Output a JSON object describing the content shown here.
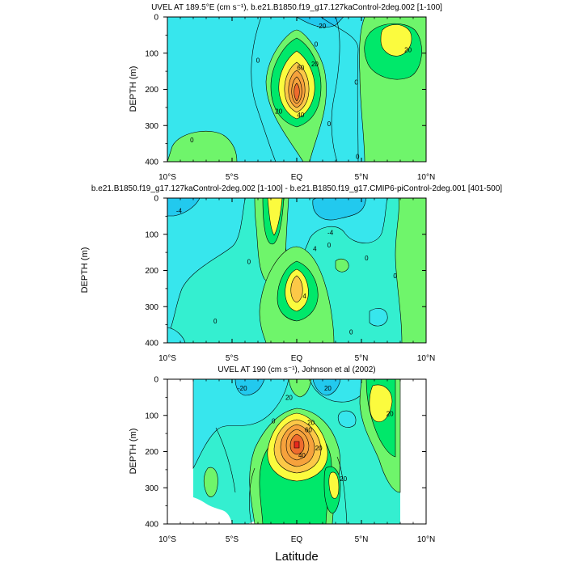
{
  "colors": {
    "cyan_dark": "#22c9ee",
    "cyan": "#37e6ed",
    "aqua": "#34efd0",
    "green_light": "#6ff56b",
    "green": "#00e86a",
    "yellow": "#fbfb3e",
    "orange_light": "#fcc847",
    "orange": "#f6a23c",
    "red_orange": "#ef6b2d",
    "red": "#e8291d"
  },
  "chart_data": [
    {
      "type": "contour",
      "title": "UVEL AT 189.5°E (cm s⁻¹), b.e21.B1850.f19_g17.127kaControl-2deg.002 [1-100]",
      "xlabel": "",
      "ylabel": "DEPTH (m)",
      "xlim": [
        -10,
        10
      ],
      "ylim": [
        400,
        0
      ],
      "xticks": [
        "10°S",
        "5°S",
        "EQ",
        "5°N",
        "10°N"
      ],
      "yticks": [
        "0",
        "100",
        "200",
        "300",
        "400"
      ],
      "contour_labels": [
        {
          "text": "-20",
          "x": 1.9,
          "y": 25
        },
        {
          "text": "0",
          "x": 1.5,
          "y": 75
        },
        {
          "text": "20",
          "x": 1.4,
          "y": 130
        },
        {
          "text": "60",
          "x": 0.3,
          "y": 140
        },
        {
          "text": "40",
          "x": 0.3,
          "y": 270
        },
        {
          "text": "20",
          "x": -1.4,
          "y": 260
        },
        {
          "text": "0",
          "x": -3.0,
          "y": 120
        },
        {
          "text": "0",
          "x": 2.5,
          "y": 295
        },
        {
          "text": "0",
          "x": 4.6,
          "y": 180
        },
        {
          "text": "0",
          "x": 4.7,
          "y": 385
        },
        {
          "text": "0",
          "x": -8.1,
          "y": 340
        },
        {
          "text": "20",
          "x": 8.6,
          "y": 90
        }
      ],
      "features": [
        {
          "kind": "core",
          "label": "equatorial undercurrent maximum",
          "lat": 0.0,
          "depth": 175,
          "peak": 100
        },
        {
          "kind": "core",
          "label": "northern subsurface eastward flow",
          "lat": 6.3,
          "depth": 70,
          "peak": 25
        },
        {
          "kind": "core",
          "label": "surface westward flow",
          "lat": 2.5,
          "depth": 10,
          "peak": -25
        }
      ]
    },
    {
      "type": "contour",
      "title": "b.e21.B1850.f19_g17.127kaControl-2deg.002 [1-100] - b.e21.B1850.f19_g17.CMIP6-piControl-2deg.001 [401-500]",
      "xlabel": "",
      "ylabel": "DEPTH (m)",
      "xlim": [
        -10,
        10
      ],
      "ylim": [
        400,
        0
      ],
      "xticks": [
        "10°S",
        "5°S",
        "EQ",
        "5°N",
        "10°N"
      ],
      "yticks": [
        "0",
        "100",
        "200",
        "300",
        "400"
      ],
      "contour_labels": [
        {
          "text": "-4",
          "x": -9.1,
          "y": 35
        },
        {
          "text": "-4",
          "x": 2.6,
          "y": 95
        },
        {
          "text": "0",
          "x": 2.5,
          "y": 130
        },
        {
          "text": "4",
          "x": 1.4,
          "y": 140
        },
        {
          "text": "0",
          "x": -3.7,
          "y": 175
        },
        {
          "text": "4",
          "x": 0.6,
          "y": 270
        },
        {
          "text": "0",
          "x": -6.3,
          "y": 340
        },
        {
          "text": "0",
          "x": 5.4,
          "y": 165
        },
        {
          "text": "0",
          "x": 7.6,
          "y": 215
        },
        {
          "text": "0",
          "x": 4.2,
          "y": 370
        }
      ],
      "features": [
        {
          "kind": "core",
          "label": "positive anomaly near surface",
          "lat": -1.6,
          "depth": 50,
          "peak": 8
        },
        {
          "kind": "core",
          "label": "positive anomaly at depth",
          "lat": -0.1,
          "depth": 230,
          "peak": 8
        },
        {
          "kind": "core",
          "label": "negative anomaly",
          "lat": 2.5,
          "depth": 40,
          "peak": -6
        }
      ]
    },
    {
      "type": "contour",
      "title": "UVEL AT 190 (cm s⁻¹), Johnson et al (2002)",
      "xlabel": "Latitude",
      "ylabel": "DEPTH (m)",
      "xlim": [
        -10,
        10
      ],
      "ylim": [
        400,
        0
      ],
      "xticks": [
        "10°S",
        "5°S",
        "EQ",
        "5°N",
        "10°N"
      ],
      "yticks": [
        "0",
        "100",
        "200",
        "300",
        "400"
      ],
      "contour_labels": [
        {
          "text": "-20",
          "x": -4.2,
          "y": 25
        },
        {
          "text": "20",
          "x": -0.6,
          "y": 50
        },
        {
          "text": "20",
          "x": 2.4,
          "y": 25
        },
        {
          "text": "0",
          "x": -1.8,
          "y": 115
        },
        {
          "text": "20",
          "x": 1.1,
          "y": 120
        },
        {
          "text": "60",
          "x": 0.9,
          "y": 140
        },
        {
          "text": "20",
          "x": 1.7,
          "y": 190
        },
        {
          "text": "40",
          "x": 0.4,
          "y": 210
        },
        {
          "text": "20",
          "x": 3.6,
          "y": 275
        },
        {
          "text": "20",
          "x": 7.2,
          "y": 95
        }
      ],
      "features": [
        {
          "kind": "core",
          "label": "equatorial undercurrent maximum",
          "lat": 0.1,
          "depth": 150,
          "peak": 110
        },
        {
          "kind": "core",
          "label": "northern subsurface eastward flow",
          "lat": 6.6,
          "depth": 70,
          "peak": 30
        },
        {
          "kind": "core",
          "label": "surface westward flow",
          "lat": 2.3,
          "depth": 10,
          "peak": -25
        }
      ]
    }
  ]
}
